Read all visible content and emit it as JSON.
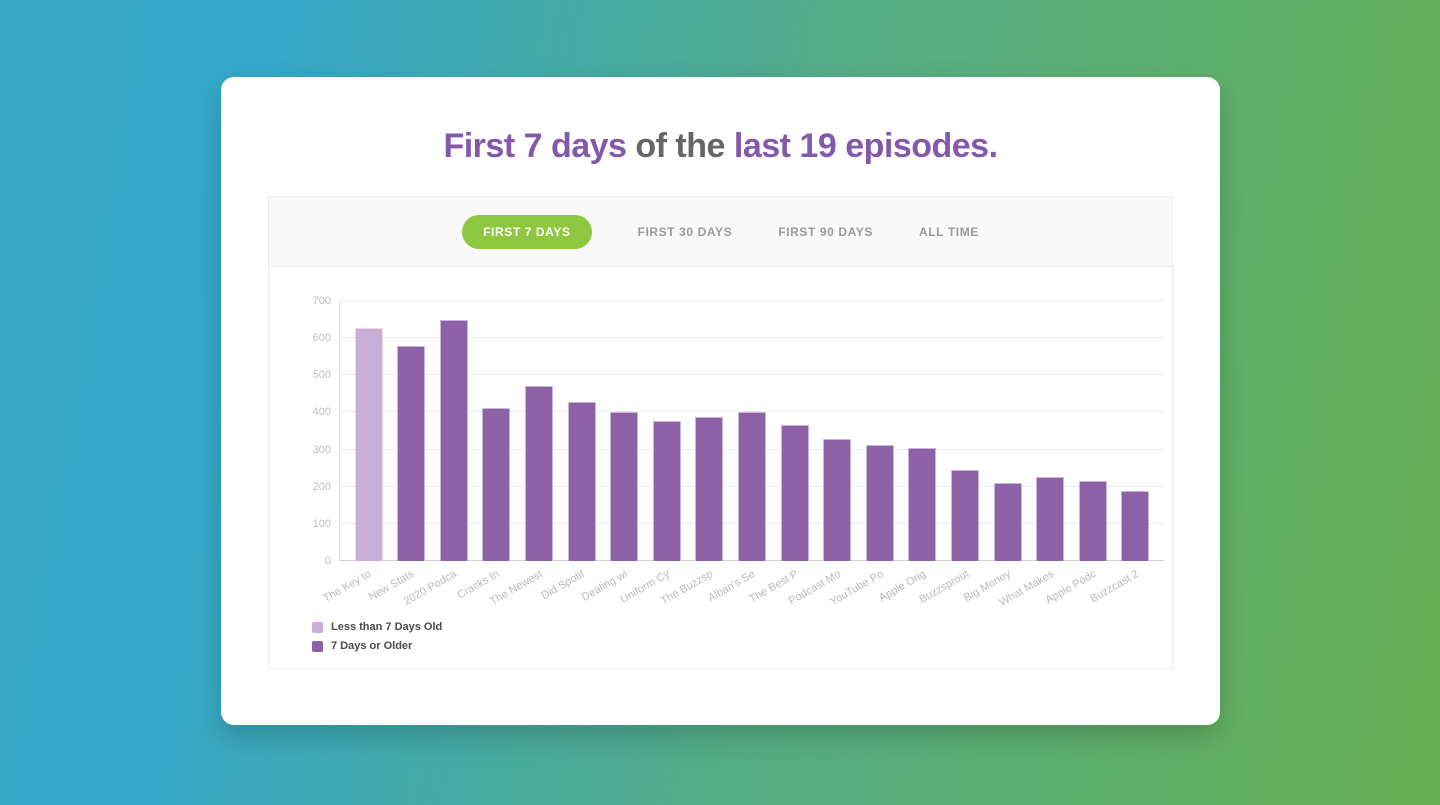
{
  "title": {
    "part1": "First 7 days",
    "part2": " of the ",
    "part3": "last 19 episodes."
  },
  "tabs": [
    {
      "label": "FIRST 7 DAYS",
      "active": true
    },
    {
      "label": "FIRST 30 DAYS",
      "active": false
    },
    {
      "label": "FIRST 90 DAYS",
      "active": false
    },
    {
      "label": "ALL TIME",
      "active": false
    }
  ],
  "colors": {
    "accent_purple": "#8459ab",
    "tab_active_green": "#8dc63f",
    "bar_light": "#c9afd7",
    "bar_dark": "#8c61a7",
    "background_teal": "#38a7c4",
    "background_green": "#67b153"
  },
  "chart_data": {
    "type": "bar",
    "title": "First 7 days of the last 19 episodes.",
    "categories": [
      "The Key to",
      "New Stats",
      "2020 Podca",
      "Cracks In",
      "The Newest",
      "Did Spotif",
      "Dealing wi",
      "Uniform Cy",
      "The Buzzsp",
      "Alban's Se",
      "The Best P",
      "Podcast Mo",
      "YouTube Po",
      "Apple Orig",
      "Buzzsprout",
      "Big Money",
      "What Makes",
      "Apple Podc",
      "Buzzcast 2"
    ],
    "values": [
      627,
      580,
      648,
      413,
      470,
      428,
      400,
      376,
      389,
      401,
      366,
      328,
      312,
      304,
      244,
      211,
      226,
      216,
      188
    ],
    "series_membership": [
      "Less than 7 Days Old",
      "7 Days or Older",
      "7 Days or Older",
      "7 Days or Older",
      "7 Days or Older",
      "7 Days or Older",
      "7 Days or Older",
      "7 Days or Older",
      "7 Days or Older",
      "7 Days or Older",
      "7 Days or Older",
      "7 Days or Older",
      "7 Days or Older",
      "7 Days or Older",
      "7 Days or Older",
      "7 Days or Older",
      "7 Days or Older",
      "7 Days or Older",
      "7 Days or Older"
    ],
    "xlabel": "",
    "ylabel": "",
    "ylim": [
      0,
      700
    ],
    "yticks": [
      0,
      100,
      200,
      300,
      400,
      500,
      600,
      700
    ],
    "grid": true,
    "legend_position": "bottom-left",
    "legend": [
      {
        "label": "Less than 7 Days Old",
        "color": "#c9afd7"
      },
      {
        "label": "7 Days or Older",
        "color": "#8c61a7"
      }
    ]
  }
}
